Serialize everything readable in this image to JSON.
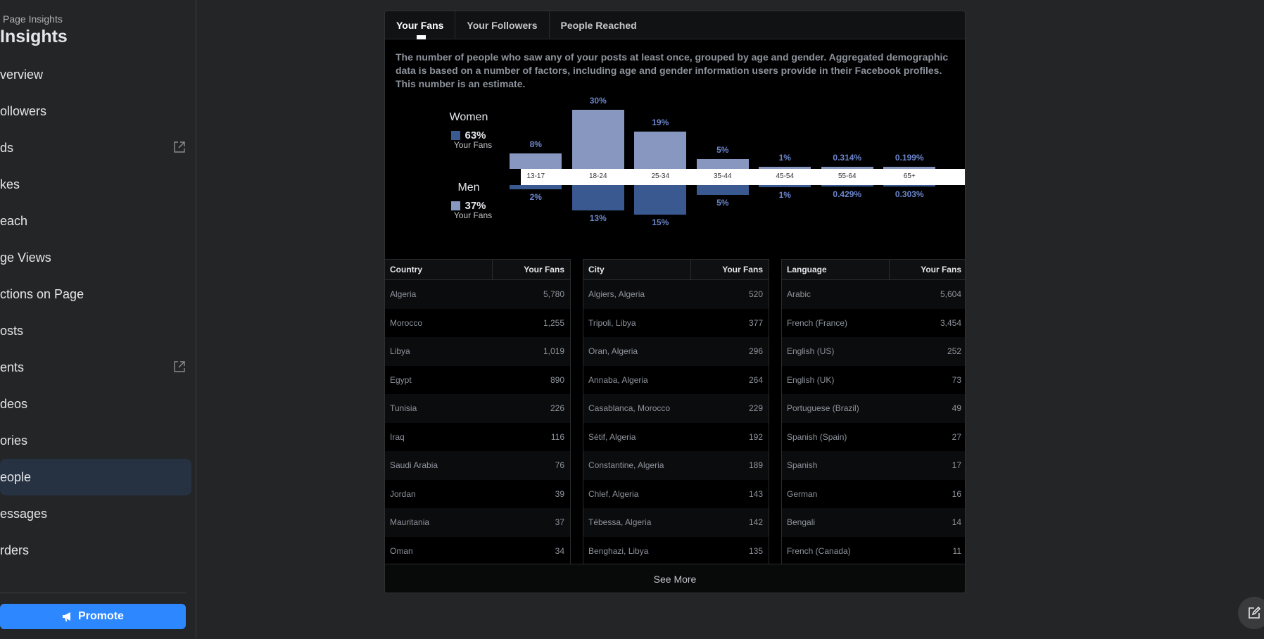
{
  "sidebar": {
    "subtitle": "Page Insights",
    "title": "Insights",
    "items": [
      {
        "label": "verview"
      },
      {
        "label": "ollowers"
      },
      {
        "label": "ds"
      },
      {
        "label": "kes"
      },
      {
        "label": "each"
      },
      {
        "label": "ge Views"
      },
      {
        "label": "ctions on Page"
      },
      {
        "label": "osts"
      },
      {
        "label": "ents"
      },
      {
        "label": "deos"
      },
      {
        "label": "ories"
      },
      {
        "label": "eople"
      },
      {
        "label": "essages"
      },
      {
        "label": "rders"
      }
    ],
    "promote_label": "Promote"
  },
  "tabs": [
    "Your Fans",
    "Your Followers",
    "People Reached"
  ],
  "description": "The number of people who saw any of your posts at least once, grouped by age and gender. Aggregated demographic data is based on a number of factors, including age and gender information users provide in their Facebook profiles. This number is an estimate.",
  "legend": {
    "women": {
      "label": "Women",
      "pct": "63%",
      "sub": "Your Fans"
    },
    "men": {
      "label": "Men",
      "pct": "37%",
      "sub": "Your Fans"
    }
  },
  "colors": {
    "women": "#8897c0",
    "men": "#3a5991",
    "accent": "#2d88ff"
  },
  "chart_data": {
    "type": "bar",
    "categories": [
      "13-17",
      "18-24",
      "25-34",
      "35-44",
      "45-54",
      "55-64",
      "65+"
    ],
    "series": [
      {
        "name": "Women",
        "values": [
          8,
          30,
          19,
          5,
          1,
          0.314,
          0.199
        ],
        "labels": [
          "8%",
          "30%",
          "19%",
          "5%",
          "1%",
          "0.314%",
          "0.199%"
        ]
      },
      {
        "name": "Men",
        "values": [
          2,
          13,
          15,
          5,
          1,
          0.429,
          0.303
        ],
        "labels": [
          "2%",
          "13%",
          "15%",
          "5%",
          "1%",
          "0.429%",
          "0.303%"
        ]
      }
    ]
  },
  "tables": {
    "country": {
      "headers": [
        "Country",
        "Your Fans"
      ],
      "rows": [
        [
          "Algeria",
          "5,780"
        ],
        [
          "Morocco",
          "1,255"
        ],
        [
          "Libya",
          "1,019"
        ],
        [
          "Egypt",
          "890"
        ],
        [
          "Tunisia",
          "226"
        ],
        [
          "Iraq",
          "116"
        ],
        [
          "Saudi Arabia",
          "76"
        ],
        [
          "Jordan",
          "39"
        ],
        [
          "Mauritania",
          "37"
        ],
        [
          "Oman",
          "34"
        ]
      ]
    },
    "city": {
      "headers": [
        "City",
        "Your Fans"
      ],
      "rows": [
        [
          "Algiers, Algeria",
          "520"
        ],
        [
          "Tripoli, Libya",
          "377"
        ],
        [
          "Oran, Algeria",
          "296"
        ],
        [
          "Annaba, Algeria",
          "264"
        ],
        [
          "Casablanca, Morocco",
          "229"
        ],
        [
          "Sétif, Algeria",
          "192"
        ],
        [
          "Constantine, Algeria",
          "189"
        ],
        [
          "Chlef, Algeria",
          "143"
        ],
        [
          "Tébessa, Algeria",
          "142"
        ],
        [
          "Benghazi, Libya",
          "135"
        ]
      ]
    },
    "language": {
      "headers": [
        "Language",
        "Your Fans"
      ],
      "rows": [
        [
          "Arabic",
          "5,604"
        ],
        [
          "French (France)",
          "3,454"
        ],
        [
          "English (US)",
          "252"
        ],
        [
          "English (UK)",
          "73"
        ],
        [
          "Portuguese (Brazil)",
          "49"
        ],
        [
          "Spanish (Spain)",
          "27"
        ],
        [
          "Spanish",
          "17"
        ],
        [
          "German",
          "16"
        ],
        [
          "Bengali",
          "14"
        ],
        [
          "French (Canada)",
          "11"
        ]
      ]
    }
  },
  "see_more": "See More"
}
